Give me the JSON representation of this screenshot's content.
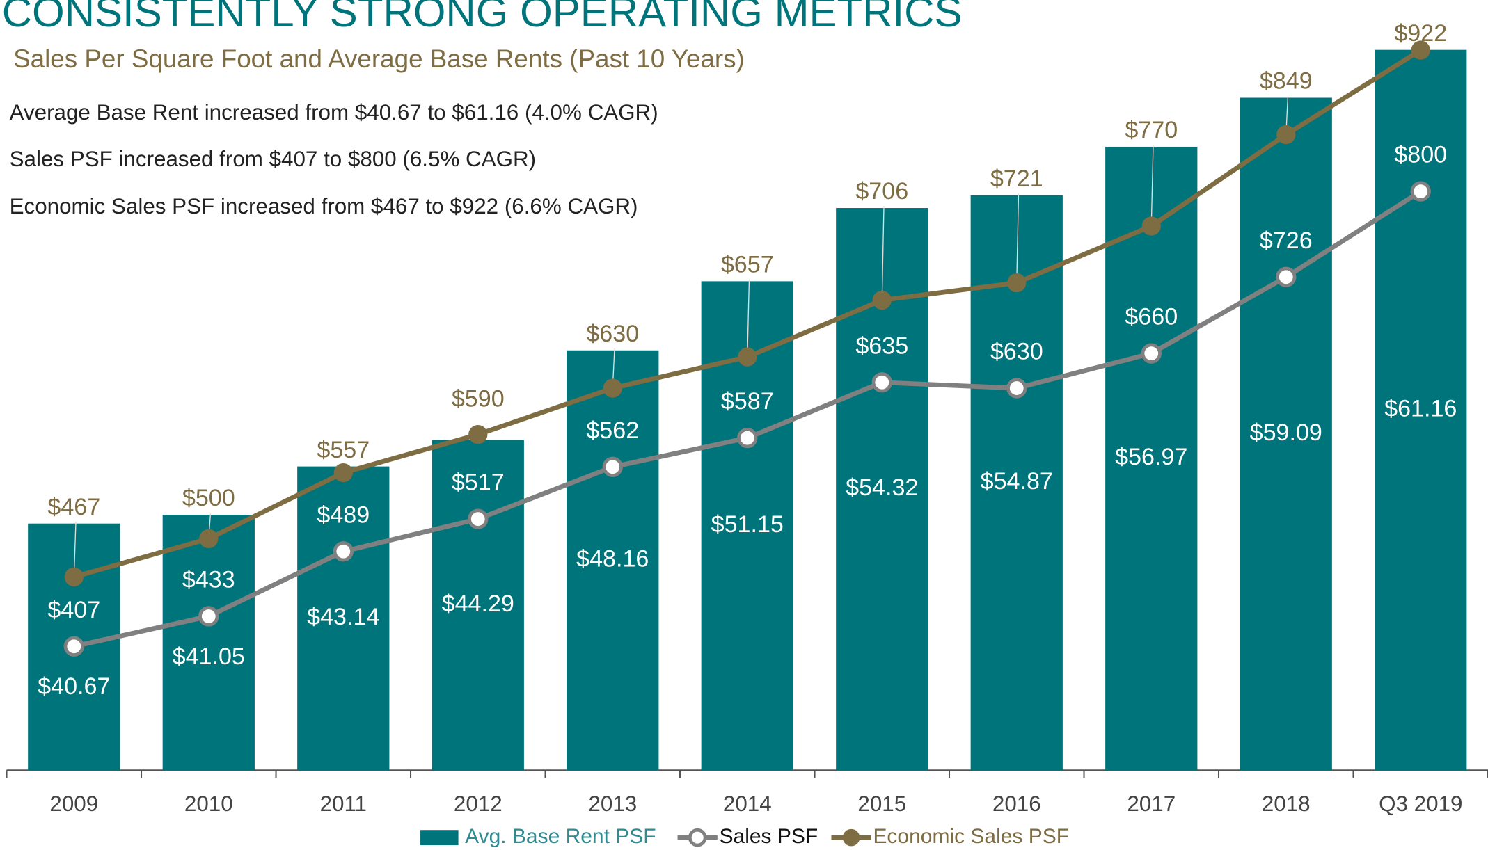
{
  "chart_data": {
    "type": "bar",
    "title": "CONSISTENTLY STRONG OPERATING METRICS",
    "subtitle": "Sales Per Square Foot and Average Base Rents (Past 10 Years)",
    "annotations": [
      "Average Base Rent increased from $40.67 to $61.16  (4.0% CAGR)",
      "Sales PSF increased from $407 to $800 (6.5% CAGR)",
      "Economic Sales PSF increased from $467 to $922 (6.6% CAGR)"
    ],
    "categories": [
      "2009",
      "2010",
      "2011",
      "2012",
      "2013",
      "2014",
      "2015",
      "2016",
      "2017",
      "2018",
      "Q3 2019"
    ],
    "series": [
      {
        "name": "Avg. Base Rent PSF",
        "type": "bar",
        "color": "#00747b",
        "values": [
          40.67,
          41.05,
          43.14,
          44.29,
          48.16,
          51.15,
          54.32,
          54.87,
          56.97,
          59.09,
          61.16
        ],
        "value_labels": [
          "$40.67",
          "$41.05",
          "$43.14",
          "$44.29",
          "$48.16",
          "$51.15",
          "$54.32",
          "$54.87",
          "$56.97",
          "$59.09",
          "$61.16"
        ]
      },
      {
        "name": "Sales PSF",
        "type": "line",
        "axis": "y2",
        "color": "#808080",
        "values": [
          407,
          433,
          489,
          517,
          562,
          587,
          635,
          630,
          660,
          726,
          800
        ],
        "value_labels": [
          "$407",
          "$433",
          "$489",
          "$517",
          "$562",
          "$587",
          "$635",
          "$630",
          "$660",
          "$726",
          "$800"
        ]
      },
      {
        "name": "Economic Sales PSF",
        "type": "line",
        "axis": "y2",
        "color": "#7e6c42",
        "values": [
          467,
          500,
          557,
          590,
          630,
          657,
          706,
          721,
          770,
          849,
          922
        ],
        "value_labels": [
          "$467",
          "$500",
          "$557",
          "$590",
          "$630",
          "$657",
          "$706",
          "$721",
          "$770",
          "$849",
          "$922"
        ]
      }
    ],
    "ylim": [
      30,
      62
    ],
    "y2lim": [
      300,
      939
    ]
  }
}
